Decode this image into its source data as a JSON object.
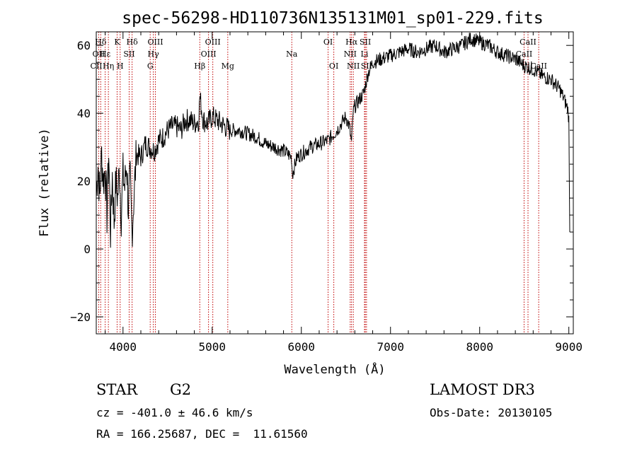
{
  "chart_data": {
    "type": "line",
    "title": "spec-56298-HD110736N135131M01_sp01-229.fits",
    "xlabel": "Wavelength (Å)",
    "ylabel": "Flux (relative)",
    "xlim": [
      3700,
      9050
    ],
    "ylim": [
      -25,
      64
    ],
    "xticks": [
      4000,
      5000,
      6000,
      7000,
      8000,
      9000
    ],
    "yticks": [
      -20,
      0,
      20,
      40,
      60
    ],
    "series": [
      {
        "name": "flux",
        "x": [
          3700,
          3720,
          3740,
          3760,
          3780,
          3800,
          3820,
          3840,
          3860,
          3880,
          3900,
          3920,
          3940,
          3960,
          3980,
          4000,
          4020,
          4040,
          4060,
          4080,
          4100,
          4150,
          4200,
          4250,
          4300,
          4350,
          4400,
          4450,
          4500,
          4550,
          4600,
          4650,
          4700,
          4750,
          4800,
          4850,
          4861,
          4900,
          4950,
          5000,
          5050,
          5100,
          5150,
          5200,
          5300,
          5400,
          5500,
          5600,
          5700,
          5800,
          5850,
          5890,
          5900,
          5950,
          6000,
          6100,
          6200,
          6300,
          6400,
          6500,
          6540,
          6563,
          6580,
          6600,
          6650,
          6700,
          6750,
          6800,
          6900,
          7000,
          7100,
          7200,
          7300,
          7400,
          7500,
          7600,
          7700,
          7800,
          7900,
          8000,
          8100,
          8200,
          8300,
          8400,
          8500,
          8600,
          8700,
          8800,
          8900,
          8950,
          8990,
          9000,
          9010
        ],
        "y": [
          17,
          25,
          15,
          28,
          20,
          24,
          10,
          28,
          5,
          22,
          8,
          20,
          15,
          24,
          10,
          22,
          18,
          26,
          12,
          20,
          5,
          28,
          27,
          31,
          30,
          29,
          32,
          33,
          35,
          36,
          36,
          35,
          38,
          38,
          37,
          38,
          45,
          38,
          37,
          39,
          38,
          37,
          36,
          35,
          35,
          34,
          33,
          31,
          30,
          29,
          28,
          27,
          22,
          27,
          28,
          30,
          31,
          32,
          35,
          39,
          36,
          31,
          40,
          42,
          44,
          46,
          52,
          55,
          56,
          57,
          58,
          59,
          58,
          59,
          60,
          58,
          59,
          60,
          62,
          61,
          60,
          58,
          57,
          56,
          54,
          53,
          51,
          50,
          47,
          44,
          41,
          38,
          5
        ]
      }
    ],
    "line_markers": [
      {
        "label": "Hδ",
        "x": 3750,
        "row": 0
      },
      {
        "label": "K",
        "x": 3934,
        "row": 0
      },
      {
        "label": "Hδ",
        "x": 4102,
        "row": 0
      },
      {
        "label": "OII",
        "x": 3727,
        "row": 1
      },
      {
        "label": "Hε",
        "x": 3800,
        "row": 1
      },
      {
        "label": "SII",
        "x": 4069,
        "row": 1
      },
      {
        "label": "CII",
        "x": 3700,
        "row": 2
      },
      {
        "label": "Hη",
        "x": 3836,
        "row": 2
      },
      {
        "label": "H",
        "x": 3968,
        "row": 2
      },
      {
        "label": "OIII",
        "x": 4363,
        "row": 0
      },
      {
        "label": "Hγ",
        "x": 4340,
        "row": 1
      },
      {
        "label": "G",
        "x": 4305,
        "row": 2
      },
      {
        "label": "OIII",
        "x": 5007,
        "row": 0
      },
      {
        "label": "OIII",
        "x": 4959,
        "row": 1
      },
      {
        "label": "Hβ",
        "x": 4861,
        "row": 2
      },
      {
        "label": "Mg",
        "x": 5175,
        "row": 2
      },
      {
        "label": "Na",
        "x": 5893,
        "row": 1
      },
      {
        "label": "OI",
        "x": 6300,
        "row": 0
      },
      {
        "label": "OI",
        "x": 6364,
        "row": 2
      },
      {
        "label": "Hα",
        "x": 6563,
        "row": 0
      },
      {
        "label": "SII",
        "x": 6717,
        "row": 0
      },
      {
        "label": "NII",
        "x": 6548,
        "row": 1
      },
      {
        "label": "Li",
        "x": 6708,
        "row": 1
      },
      {
        "label": "NII",
        "x": 6583,
        "row": 2
      },
      {
        "label": "SII",
        "x": 6731,
        "row": 2
      },
      {
        "label": "CaII",
        "x": 8542,
        "row": 0
      },
      {
        "label": "CaII",
        "x": 8498,
        "row": 1
      },
      {
        "label": "CaII",
        "x": 8662,
        "row": 2
      }
    ],
    "marker_color": "#c00000"
  },
  "info": {
    "object_class": "STAR",
    "subclass": "G2",
    "survey": "LAMOST DR3",
    "redshift_text": "cz = -401.0 ± 46.6 km/s",
    "obs_date_text": "Obs-Date: 20130105",
    "coords_text": "RA = 166.25687, DEC =  11.61560"
  }
}
